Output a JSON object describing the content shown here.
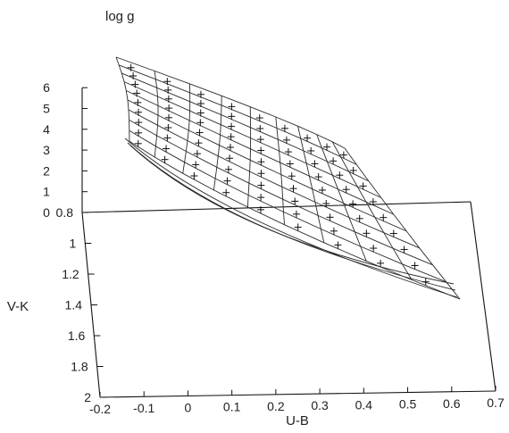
{
  "chart_data": {
    "type": "3d-surface-grid",
    "title": "",
    "axes": {
      "x": {
        "label": "U-B",
        "range": [
          -0.2,
          0.7
        ],
        "ticks": [
          "-0.2",
          "-0.1",
          "0",
          "0.1",
          "0.2",
          "0.3",
          "0.4",
          "0.5",
          "0.6",
          "0.7"
        ]
      },
      "y": {
        "label": "V-K",
        "range": [
          0.8,
          2.0
        ],
        "ticks": [
          "0.8",
          "1",
          "1.2",
          "1.4",
          "1.6",
          "1.8",
          "2"
        ]
      },
      "z": {
        "label": "log g",
        "range": [
          0,
          6
        ],
        "ticks": [
          "0",
          "1",
          "2",
          "3",
          "4",
          "5",
          "6"
        ]
      }
    },
    "grid": {
      "logg_curves": [
        0,
        0.5,
        1,
        1.5,
        2,
        2.5,
        3,
        3.5,
        4,
        4.5
      ],
      "teff_lines": 10
    },
    "markers": "plus",
    "grid_lines": false,
    "legend": "none"
  }
}
